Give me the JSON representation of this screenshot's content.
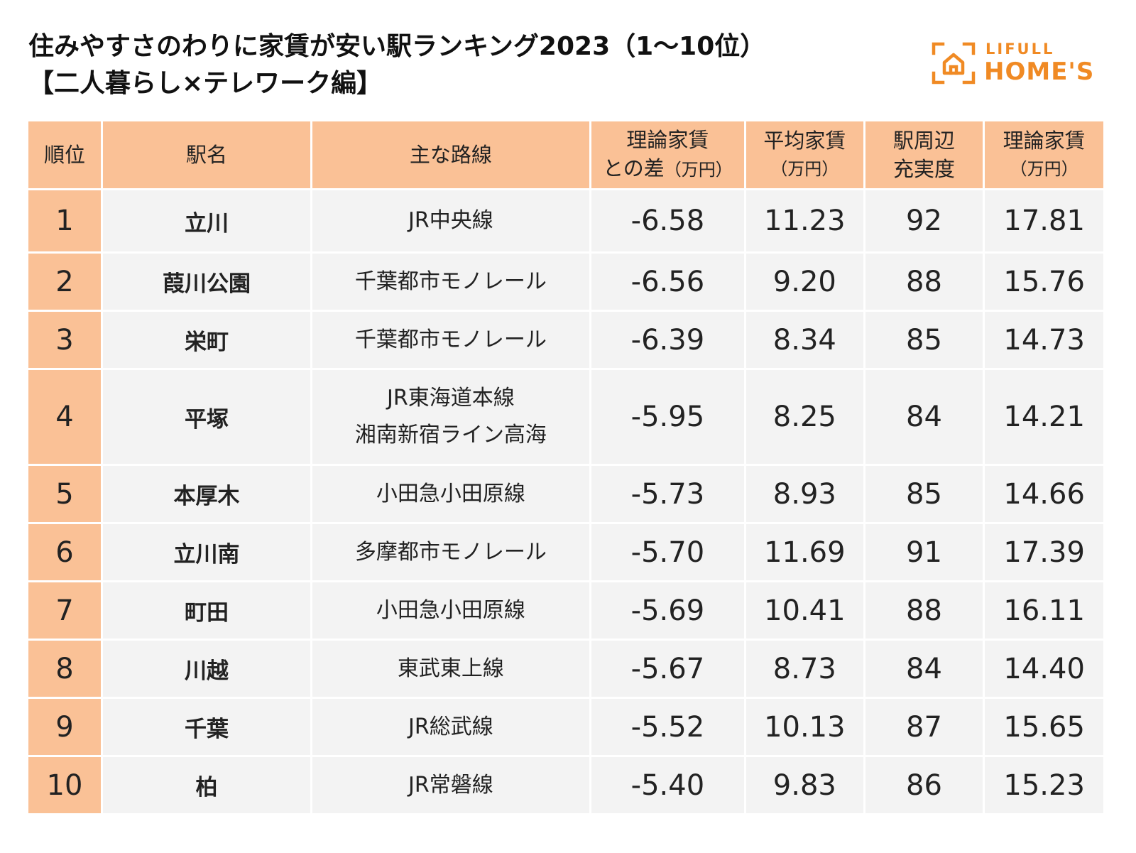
{
  "title": {
    "line1": "住みやすさのわりに家賃が安い駅ランキング2023（1〜10位）",
    "line2": "【二人暮らし×テレワーク編】"
  },
  "logo": {
    "top_text": "LIFULL",
    "bottom_text": "HOME'S",
    "color": "#F08A24"
  },
  "table": {
    "headers": {
      "rank": "順位",
      "station": "駅名",
      "line": "主な路線",
      "diff_a": "理論家賃",
      "diff_b": "との差",
      "diff_unit": "（万円）",
      "avg_a": "平均家賃",
      "avg_unit": "（万円）",
      "fullness_a": "駅周辺",
      "fullness_b": "充実度",
      "theory_a": "理論家賃",
      "theory_unit": "（万円）"
    },
    "rows": [
      {
        "rank": "1",
        "station": "立川",
        "line1": "JR中央線",
        "line2": "",
        "diff": "-6.58",
        "avg": "11.23",
        "fullness": "92",
        "theory": "17.81"
      },
      {
        "rank": "2",
        "station": "葭川公園",
        "line1": "千葉都市モノレール",
        "line2": "",
        "diff": "-6.56",
        "avg": "9.20",
        "fullness": "88",
        "theory": "15.76"
      },
      {
        "rank": "3",
        "station": "栄町",
        "line1": "千葉都市モノレール",
        "line2": "",
        "diff": "-6.39",
        "avg": "8.34",
        "fullness": "85",
        "theory": "14.73"
      },
      {
        "rank": "4",
        "station": "平塚",
        "line1": "JR東海道本線",
        "line2": "湘南新宿ライン高海",
        "diff": "-5.95",
        "avg": "8.25",
        "fullness": "84",
        "theory": "14.21"
      },
      {
        "rank": "5",
        "station": "本厚木",
        "line1": "小田急小田原線",
        "line2": "",
        "diff": "-5.73",
        "avg": "8.93",
        "fullness": "85",
        "theory": "14.66"
      },
      {
        "rank": "6",
        "station": "立川南",
        "line1": "多摩都市モノレール",
        "line2": "",
        "diff": "-5.70",
        "avg": "11.69",
        "fullness": "91",
        "theory": "17.39"
      },
      {
        "rank": "7",
        "station": "町田",
        "line1": "小田急小田原線",
        "line2": "",
        "diff": "-5.69",
        "avg": "10.41",
        "fullness": "88",
        "theory": "16.11"
      },
      {
        "rank": "8",
        "station": "川越",
        "line1": "東武東上線",
        "line2": "",
        "diff": "-5.67",
        "avg": "8.73",
        "fullness": "84",
        "theory": "14.40"
      },
      {
        "rank": "9",
        "station": "千葉",
        "line1": "JR総武線",
        "line2": "",
        "diff": "-5.52",
        "avg": "10.13",
        "fullness": "87",
        "theory": "15.65"
      },
      {
        "rank": "10",
        "station": "柏",
        "line1": "JR常磐線",
        "line2": "",
        "diff": "-5.40",
        "avg": "9.83",
        "fullness": "86",
        "theory": "15.23"
      }
    ]
  }
}
